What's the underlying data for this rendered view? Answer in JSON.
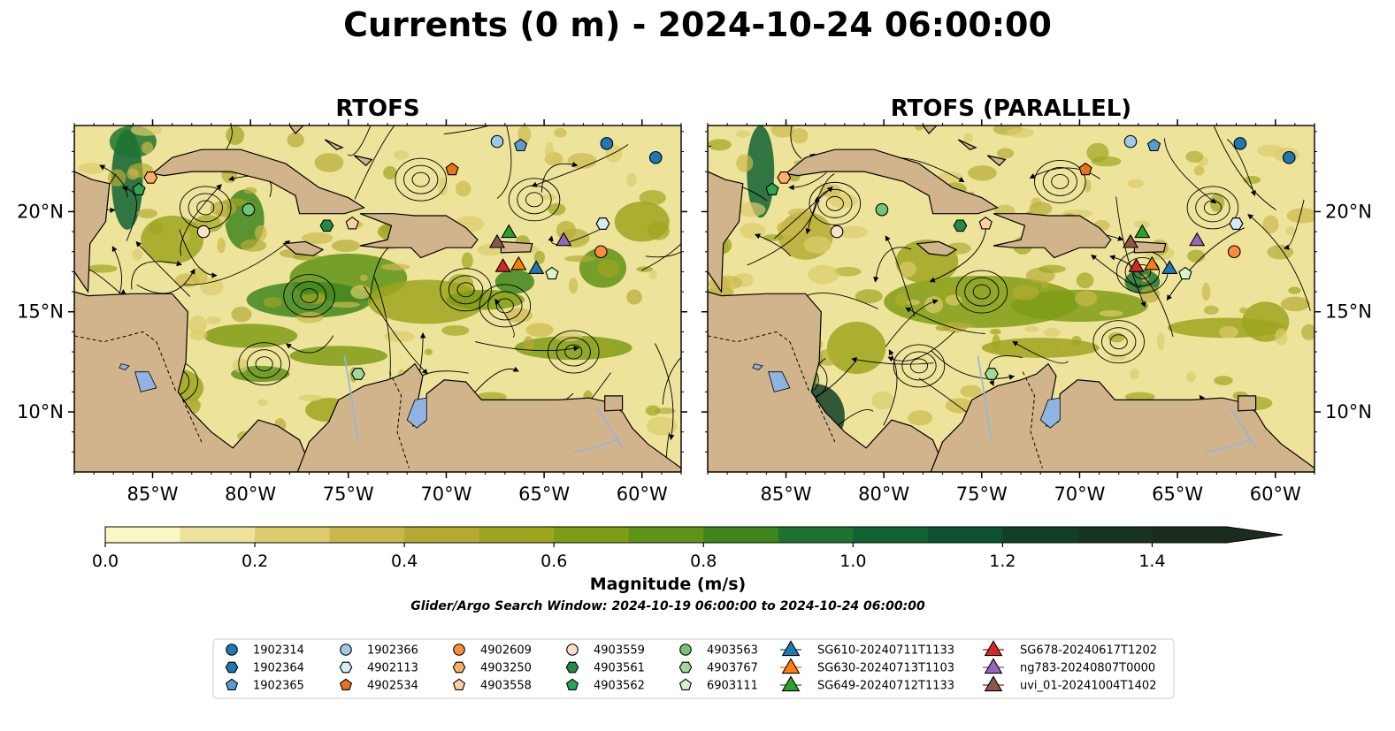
{
  "figure": {
    "title": "Currents (0 m) - 2024-10-24 06:00:00"
  },
  "panels": [
    {
      "title": "RTOFS"
    },
    {
      "title": "RTOFS (PARALLEL)"
    }
  ],
  "axes": {
    "x_ticks": [
      "85°W",
      "80°W",
      "75°W",
      "70°W",
      "65°W",
      "60°W"
    ],
    "y_ticks": [
      "20°N",
      "15°N",
      "10°N"
    ],
    "x_values": [
      -85,
      -80,
      -75,
      -70,
      -65,
      -60
    ],
    "y_values": [
      20,
      15,
      10
    ],
    "lon_range": [
      -89,
      -58
    ],
    "lat_range": [
      7,
      24.3
    ]
  },
  "colorbar": {
    "label": "Magnitude (m/s)",
    "ticks": [
      "0.0",
      "0.2",
      "0.4",
      "0.6",
      "0.8",
      "1.0",
      "1.2",
      "1.4"
    ],
    "range": [
      0,
      1.5
    ],
    "extend": "max",
    "colors": [
      "#fbf6c6",
      "#ede39a",
      "#dccc6c",
      "#cbb84b",
      "#b5ab34",
      "#9ea51f",
      "#7f9c16",
      "#5f9317",
      "#3f861d",
      "#1d7431",
      "#0f6232",
      "#0d522c",
      "#124027",
      "#173421",
      "#1a2c1d"
    ]
  },
  "search_window": "Glider/Argo Search Window: 2024-10-19 06:00:00 to 2024-10-24 06:00:00",
  "land_color": "#d2b48c",
  "lake_color": "#8fb4e3",
  "legend": {
    "columns": [
      [
        {
          "label": "1902314",
          "marker": "circle",
          "color": "#1f77b4"
        },
        {
          "label": "1902364",
          "marker": "hexagon",
          "color": "#1f77b4"
        },
        {
          "label": "1902365",
          "marker": "pentagon",
          "color": "#5b9bd5"
        }
      ],
      [
        {
          "label": "1902366",
          "marker": "circle",
          "color": "#9ecae9"
        },
        {
          "label": "4902113",
          "marker": "hexagon",
          "color": "#d4ecf9"
        },
        {
          "label": "4902534",
          "marker": "pentagon",
          "color": "#e8731b"
        }
      ],
      [
        {
          "label": "4902609",
          "marker": "circle",
          "color": "#fd8d3c"
        },
        {
          "label": "4903250",
          "marker": "hexagon",
          "color": "#fdae6b"
        },
        {
          "label": "4903558",
          "marker": "pentagon",
          "color": "#fdd0a2"
        }
      ],
      [
        {
          "label": "4903559",
          "marker": "circle",
          "color": "#fde0c9"
        },
        {
          "label": "4903561",
          "marker": "hexagon",
          "color": "#238b45"
        },
        {
          "label": "4903562",
          "marker": "pentagon",
          "color": "#31a354"
        }
      ],
      [
        {
          "label": "4903563",
          "marker": "circle",
          "color": "#74c476"
        },
        {
          "label": "4903767",
          "marker": "hexagon",
          "color": "#a1d99b"
        },
        {
          "label": "6903111",
          "marker": "pentagon",
          "color": "#d6f5c9"
        }
      ],
      [
        {
          "label": "SG610-20240711T1133",
          "marker": "triangle",
          "color": "#1f77b4"
        },
        {
          "label": "SG630-20240713T1103",
          "marker": "triangle",
          "color": "#ff7f0e"
        },
        {
          "label": "SG649-20240712T1133",
          "marker": "triangle",
          "color": "#2ca02c"
        }
      ],
      [
        {
          "label": "SG678-20240617T1202",
          "marker": "triangle",
          "color": "#d62728"
        },
        {
          "label": "ng783-20240807T0000",
          "marker": "triangle",
          "color": "#9467bd"
        },
        {
          "label": "uvi_01-20241004T1402",
          "marker": "triangle",
          "color": "#8c564b"
        }
      ]
    ]
  },
  "stations": [
    {
      "id": "1902314",
      "marker": "circle",
      "color": "#1f77b4",
      "lon": -61.8,
      "lat": 23.4
    },
    {
      "id": "1902314",
      "marker": "circle",
      "color": "#1f77b4",
      "lon": -59.3,
      "lat": 22.7
    },
    {
      "id": "1902364",
      "marker": "hexagon",
      "color": "#1f77b4",
      "lon": -62.0,
      "lat": 19.4
    },
    {
      "id": "1902365",
      "marker": "pentagon",
      "color": "#5b9bd5",
      "lon": -66.2,
      "lat": 23.3
    },
    {
      "id": "1902366",
      "marker": "circle",
      "color": "#9ecae9",
      "lon": -67.4,
      "lat": 23.5
    },
    {
      "id": "4902113",
      "marker": "hexagon",
      "color": "#d4ecf9",
      "lon": -62.0,
      "lat": 19.4
    },
    {
      "id": "4902534",
      "marker": "pentagon",
      "color": "#e8731b",
      "lon": -69.7,
      "lat": 22.1
    },
    {
      "id": "4902609",
      "marker": "circle",
      "color": "#fd8d3c",
      "lon": -62.1,
      "lat": 18.0
    },
    {
      "id": "4903250",
      "marker": "hexagon",
      "color": "#fdae6b",
      "lon": -85.1,
      "lat": 21.7
    },
    {
      "id": "4903558",
      "marker": "pentagon",
      "color": "#fdd0a2",
      "lon": -74.8,
      "lat": 19.4
    },
    {
      "id": "4903559",
      "marker": "circle",
      "color": "#fde0c9",
      "lon": -82.4,
      "lat": 19.0
    },
    {
      "id": "4903561",
      "marker": "hexagon",
      "color": "#238b45",
      "lon": -76.1,
      "lat": 19.3
    },
    {
      "id": "4903562",
      "marker": "pentagon",
      "color": "#31a354",
      "lon": -85.7,
      "lat": 21.1
    },
    {
      "id": "4903563",
      "marker": "circle",
      "color": "#74c476",
      "lon": -80.1,
      "lat": 20.1
    },
    {
      "id": "4903767",
      "marker": "hexagon",
      "color": "#a1d99b",
      "lon": -74.5,
      "lat": 11.9
    },
    {
      "id": "6903111",
      "marker": "pentagon",
      "color": "#d6f5c9",
      "lon": -64.6,
      "lat": 16.9
    },
    {
      "id": "SG610-20240711T1133",
      "marker": "triangle",
      "color": "#1f77b4",
      "lon": -65.4,
      "lat": 17.2
    },
    {
      "id": "SG630-20240713T1103",
      "marker": "triangle",
      "color": "#ff7f0e",
      "lon": -66.3,
      "lat": 17.4
    },
    {
      "id": "SG649-20240712T1133",
      "marker": "triangle",
      "color": "#2ca02c",
      "lon": -66.8,
      "lat": 19.0
    },
    {
      "id": "SG678-20240617T1202",
      "marker": "triangle",
      "color": "#d62728",
      "lon": -67.1,
      "lat": 17.3
    },
    {
      "id": "ng783-20240807T0000",
      "marker": "triangle",
      "color": "#9467bd",
      "lon": -64.0,
      "lat": 18.6
    },
    {
      "id": "uvi_01-20241004T1402",
      "marker": "triangle",
      "color": "#8c564b",
      "lon": -67.4,
      "lat": 18.5
    }
  ]
}
